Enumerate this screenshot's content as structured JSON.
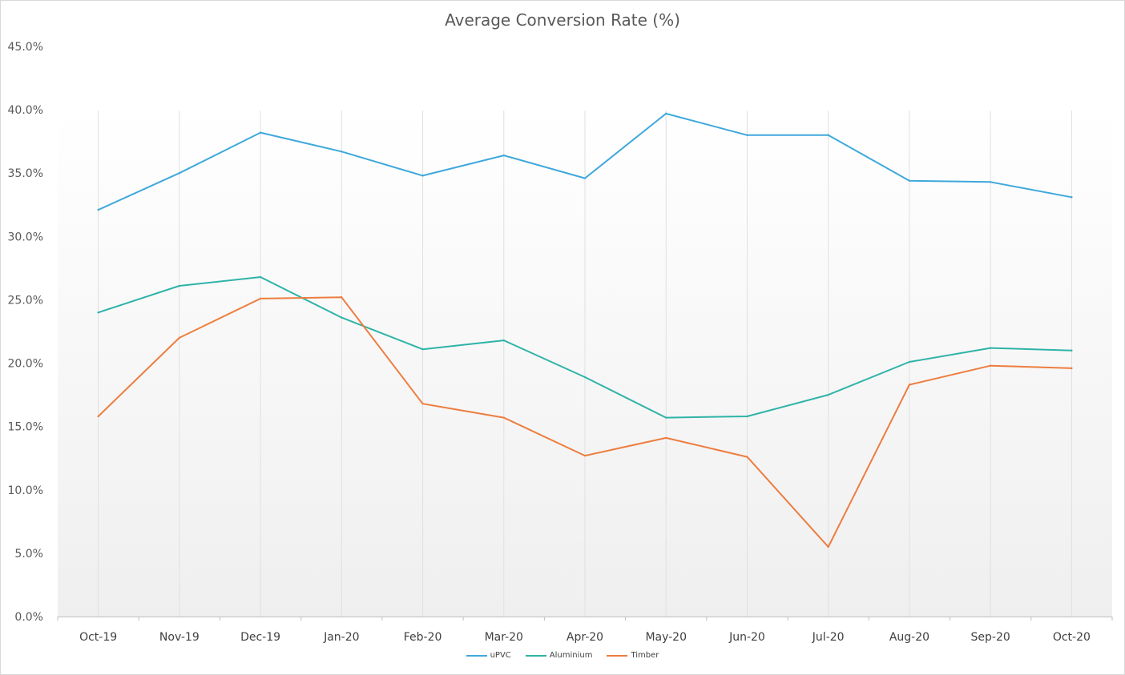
{
  "chart_data": {
    "type": "line",
    "title": "Average Conversion Rate (%)",
    "categories": [
      "Oct-19",
      "Nov-19",
      "Dec-19",
      "Jan-20",
      "Feb-20",
      "Mar-20",
      "Apr-20",
      "May-20",
      "Jun-20",
      "Jul-20",
      "Aug-20",
      "Sep-20",
      "Oct-20"
    ],
    "y_ticks": [
      "0.0%",
      "5.0%",
      "10.0%",
      "15.0%",
      "20.0%",
      "25.0%",
      "30.0%",
      "35.0%",
      "40.0%",
      "45.0%"
    ],
    "ylim": [
      0,
      45
    ],
    "grid": "vertical",
    "legend_position": "bottom",
    "series": [
      {
        "name": "uPVC",
        "color": "#3fa8dc",
        "values": [
          32.1,
          35.0,
          38.2,
          36.7,
          34.8,
          36.4,
          34.6,
          39.7,
          38.0,
          38.0,
          34.4,
          34.3,
          33.1
        ]
      },
      {
        "name": "Aluminium",
        "color": "#2fb3a7",
        "values": [
          24.0,
          26.1,
          26.8,
          23.6,
          21.1,
          21.8,
          18.9,
          15.7,
          15.8,
          17.5,
          20.1,
          21.2,
          21.0
        ]
      },
      {
        "name": "Timber",
        "color": "#ed7d3f",
        "values": [
          15.8,
          22.0,
          25.1,
          25.2,
          16.8,
          15.7,
          12.7,
          14.1,
          12.6,
          5.5,
          18.3,
          19.8,
          19.6
        ]
      }
    ]
  }
}
